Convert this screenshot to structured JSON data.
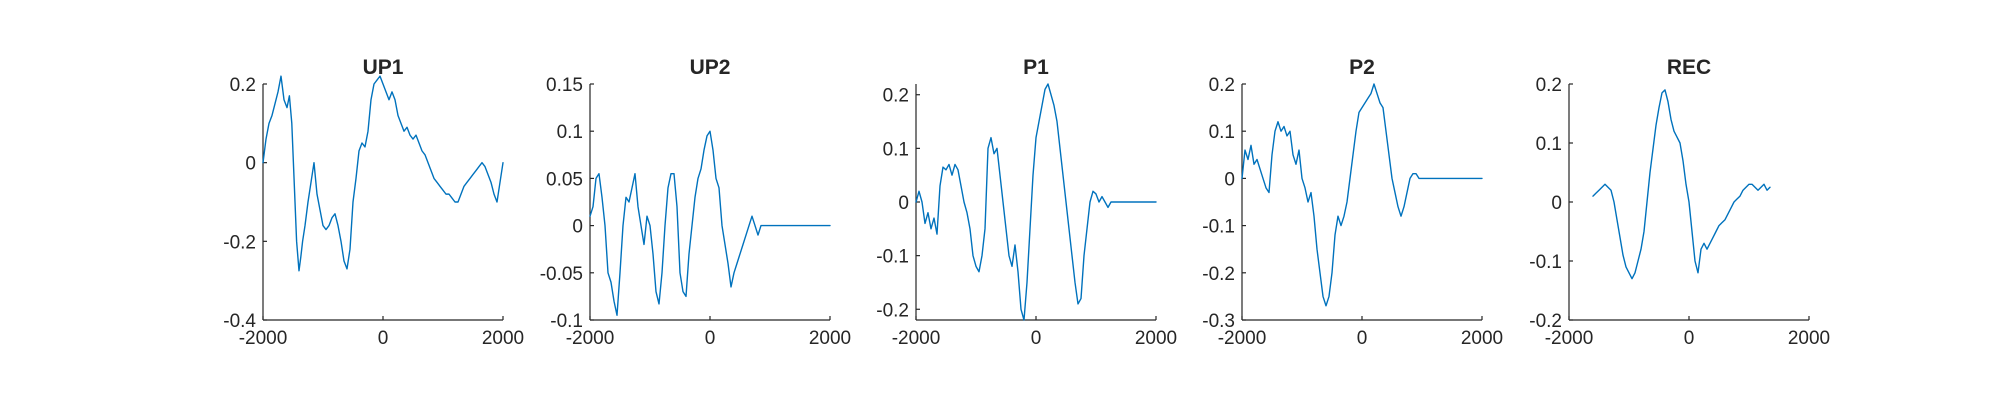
{
  "figure": {
    "line_color": "#0072BD",
    "axis_color": "#262626"
  },
  "chart_data": [
    {
      "type": "line",
      "title": "UP1",
      "xlim": [
        -2000,
        2000
      ],
      "ylim": [
        -0.4,
        0.2
      ],
      "xticks": [
        -2000,
        0,
        2000
      ],
      "yticks": [
        -0.4,
        -0.2,
        0,
        0.2
      ],
      "xtick_labels": [
        "-2000",
        "0",
        "2000"
      ],
      "ytick_labels": [
        "-0.4",
        "-0.2",
        "0",
        "0.2"
      ],
      "grid": false,
      "x": [
        -2000,
        -1950,
        -1900,
        -1850,
        -1800,
        -1750,
        -1700,
        -1650,
        -1600,
        -1560,
        -1520,
        -1480,
        -1440,
        -1400,
        -1370,
        -1340,
        -1300,
        -1250,
        -1200,
        -1150,
        -1100,
        -1050,
        -1000,
        -950,
        -900,
        -850,
        -800,
        -750,
        -700,
        -650,
        -600,
        -550,
        -500,
        -450,
        -400,
        -350,
        -300,
        -250,
        -200,
        -150,
        -100,
        -50,
        0,
        50,
        100,
        150,
        200,
        250,
        300,
        350,
        400,
        450,
        500,
        550,
        600,
        650,
        700,
        750,
        800,
        850,
        900,
        950,
        1000,
        1050,
        1100,
        1150,
        1200,
        1250,
        1300,
        1350,
        1400,
        1450,
        1500,
        1550,
        1600,
        1650,
        1700,
        1750,
        1800,
        1850,
        1900,
        1950,
        2000
      ],
      "series": [
        {
          "values": [
            0.0,
            0.06,
            0.1,
            0.12,
            0.15,
            0.18,
            0.22,
            0.16,
            0.14,
            0.17,
            0.1,
            -0.05,
            -0.2,
            -0.275,
            -0.24,
            -0.2,
            -0.16,
            -0.1,
            -0.05,
            0.0,
            -0.08,
            -0.12,
            -0.16,
            -0.17,
            -0.16,
            -0.14,
            -0.13,
            -0.16,
            -0.2,
            -0.25,
            -0.27,
            -0.22,
            -0.1,
            -0.04,
            0.03,
            0.05,
            0.04,
            0.08,
            0.16,
            0.2,
            0.21,
            0.22,
            0.2,
            0.18,
            0.16,
            0.18,
            0.16,
            0.12,
            0.1,
            0.08,
            0.09,
            0.07,
            0.06,
            0.07,
            0.05,
            0.03,
            0.02,
            0.0,
            -0.02,
            -0.04,
            -0.05,
            -0.06,
            -0.07,
            -0.08,
            -0.08,
            -0.09,
            -0.1,
            -0.1,
            -0.08,
            -0.06,
            -0.05,
            -0.04,
            -0.03,
            -0.02,
            -0.01,
            0.0,
            -0.01,
            -0.03,
            -0.05,
            -0.08,
            -0.1,
            -0.05,
            0.0
          ]
        }
      ]
    },
    {
      "type": "line",
      "title": "UP2",
      "xlim": [
        -2000,
        2000
      ],
      "ylim": [
        -0.1,
        0.15
      ],
      "xticks": [
        -2000,
        0,
        2000
      ],
      "yticks": [
        -0.1,
        -0.05,
        0,
        0.05,
        0.1,
        0.15
      ],
      "xtick_labels": [
        "-2000",
        "0",
        "2000"
      ],
      "ytick_labels": [
        "-0.1",
        "-0.05",
        "0",
        "0.05",
        "0.1",
        "0.15"
      ],
      "grid": false,
      "x": [
        -2000,
        -1950,
        -1900,
        -1850,
        -1800,
        -1750,
        -1700,
        -1650,
        -1600,
        -1550,
        -1500,
        -1450,
        -1400,
        -1350,
        -1300,
        -1250,
        -1200,
        -1150,
        -1100,
        -1050,
        -1000,
        -950,
        -900,
        -850,
        -800,
        -750,
        -700,
        -650,
        -600,
        -550,
        -500,
        -450,
        -400,
        -350,
        -300,
        -250,
        -200,
        -150,
        -100,
        -50,
        0,
        50,
        100,
        150,
        200,
        250,
        300,
        350,
        400,
        450,
        500,
        550,
        600,
        650,
        700,
        750,
        800,
        850,
        900,
        950,
        1000,
        1050,
        1100,
        1150,
        1200,
        1250,
        1300,
        1350,
        1400,
        1450,
        1500,
        1550,
        1600,
        1650,
        1700,
        1750,
        1800,
        1850,
        1900,
        1950,
        2000
      ],
      "series": [
        {
          "values": [
            0.01,
            0.02,
            0.05,
            0.055,
            0.03,
            0.0,
            -0.05,
            -0.06,
            -0.08,
            -0.095,
            -0.05,
            0.0,
            0.03,
            0.025,
            0.04,
            0.055,
            0.02,
            0.0,
            -0.02,
            0.01,
            0.0,
            -0.03,
            -0.07,
            -0.083,
            -0.05,
            0.0,
            0.04,
            0.055,
            0.055,
            0.02,
            -0.05,
            -0.07,
            -0.075,
            -0.03,
            0.0,
            0.03,
            0.05,
            0.06,
            0.08,
            0.095,
            0.1,
            0.08,
            0.05,
            0.04,
            0.0,
            -0.02,
            -0.04,
            -0.065,
            -0.05,
            -0.04,
            -0.03,
            -0.02,
            -0.01,
            0.0,
            0.01,
            0.0,
            -0.01,
            0.0,
            0.0,
            0.0,
            0.0,
            0.0,
            0.0,
            0.0,
            0.0,
            0.0,
            0.0,
            0.0,
            0.0,
            0.0,
            0.0,
            0.0,
            0.0,
            0.0,
            0.0,
            0.0,
            0.0,
            0.0,
            0.0,
            0.0,
            0.0
          ]
        }
      ]
    },
    {
      "type": "line",
      "title": "P1",
      "xlim": [
        -2000,
        2000
      ],
      "ylim": [
        -0.22,
        0.22
      ],
      "xticks": [
        -2000,
        0,
        2000
      ],
      "yticks": [
        -0.2,
        -0.1,
        0,
        0.1,
        0.2
      ],
      "xtick_labels": [
        "-2000",
        "0",
        "2000"
      ],
      "ytick_labels": [
        "-0.2",
        "-0.1",
        "0",
        "0.1",
        "0.2"
      ],
      "grid": false,
      "x": [
        -2000,
        -1950,
        -1900,
        -1850,
        -1800,
        -1750,
        -1700,
        -1650,
        -1600,
        -1550,
        -1500,
        -1450,
        -1400,
        -1350,
        -1300,
        -1250,
        -1200,
        -1150,
        -1100,
        -1050,
        -1000,
        -950,
        -900,
        -850,
        -800,
        -750,
        -700,
        -650,
        -600,
        -550,
        -500,
        -450,
        -400,
        -350,
        -300,
        -250,
        -200,
        -150,
        -100,
        -50,
        0,
        50,
        100,
        150,
        200,
        250,
        300,
        350,
        400,
        450,
        500,
        550,
        600,
        650,
        700,
        750,
        800,
        850,
        900,
        950,
        1000,
        1050,
        1100,
        1150,
        1200,
        1250,
        1300,
        1350,
        1400,
        1450,
        1500,
        1550,
        1600,
        1650,
        1700,
        1750,
        1800,
        1850,
        1900,
        1950,
        2000
      ],
      "series": [
        {
          "values": [
            0.0,
            0.02,
            0.0,
            -0.04,
            -0.02,
            -0.05,
            -0.03,
            -0.06,
            0.03,
            0.065,
            0.06,
            0.07,
            0.05,
            0.07,
            0.06,
            0.03,
            0.0,
            -0.02,
            -0.05,
            -0.1,
            -0.12,
            -0.13,
            -0.1,
            -0.05,
            0.1,
            0.12,
            0.09,
            0.1,
            0.05,
            0.0,
            -0.05,
            -0.1,
            -0.12,
            -0.08,
            -0.13,
            -0.2,
            -0.22,
            -0.15,
            -0.05,
            0.05,
            0.12,
            0.15,
            0.18,
            0.21,
            0.22,
            0.2,
            0.18,
            0.15,
            0.1,
            0.05,
            0.0,
            -0.05,
            -0.1,
            -0.15,
            -0.19,
            -0.18,
            -0.1,
            -0.05,
            0.0,
            0.02,
            0.015,
            0.0,
            0.01,
            0.0,
            -0.01,
            0.0,
            0.0,
            0.0,
            0.0,
            0.0,
            0.0,
            0.0,
            0.0,
            0.0,
            0.0,
            0.0,
            0.0,
            0.0,
            0.0,
            0.0,
            0.0
          ]
        }
      ]
    },
    {
      "type": "line",
      "title": "P2",
      "xlim": [
        -2000,
        2000
      ],
      "ylim": [
        -0.3,
        0.2
      ],
      "xticks": [
        -2000,
        0,
        2000
      ],
      "yticks": [
        -0.3,
        -0.2,
        -0.1,
        0,
        0.1,
        0.2
      ],
      "xtick_labels": [
        "-2000",
        "0",
        "2000"
      ],
      "ytick_labels": [
        "-0.3",
        "-0.2",
        "-0.1",
        "0",
        "0.1",
        "0.2"
      ],
      "grid": false,
      "x": [
        -2000,
        -1950,
        -1900,
        -1850,
        -1800,
        -1750,
        -1700,
        -1650,
        -1600,
        -1550,
        -1500,
        -1450,
        -1400,
        -1350,
        -1300,
        -1250,
        -1200,
        -1150,
        -1100,
        -1050,
        -1000,
        -950,
        -900,
        -850,
        -800,
        -750,
        -700,
        -650,
        -600,
        -550,
        -500,
        -450,
        -400,
        -350,
        -300,
        -250,
        -200,
        -150,
        -100,
        -50,
        0,
        50,
        100,
        150,
        200,
        250,
        300,
        350,
        400,
        450,
        500,
        550,
        600,
        650,
        700,
        750,
        800,
        850,
        900,
        950,
        1000,
        1050,
        1100,
        1150,
        1200,
        1250,
        1300,
        1350,
        1400,
        1450,
        1500,
        1550,
        1600,
        1650,
        1700,
        1750,
        1800,
        1850,
        1900,
        1950,
        2000
      ],
      "series": [
        {
          "values": [
            0.0,
            0.06,
            0.04,
            0.07,
            0.03,
            0.04,
            0.02,
            0.0,
            -0.02,
            -0.03,
            0.05,
            0.1,
            0.12,
            0.1,
            0.11,
            0.09,
            0.1,
            0.05,
            0.03,
            0.06,
            0.0,
            -0.02,
            -0.05,
            -0.03,
            -0.08,
            -0.15,
            -0.2,
            -0.25,
            -0.27,
            -0.25,
            -0.2,
            -0.12,
            -0.08,
            -0.1,
            -0.08,
            -0.05,
            0.0,
            0.05,
            0.1,
            0.14,
            0.15,
            0.16,
            0.17,
            0.18,
            0.2,
            0.18,
            0.16,
            0.15,
            0.1,
            0.05,
            0.0,
            -0.03,
            -0.06,
            -0.08,
            -0.06,
            -0.03,
            0.0,
            0.01,
            0.01,
            0.0,
            0.0,
            0.0,
            0.0,
            0.0,
            0.0,
            0.0,
            0.0,
            0.0,
            0.0,
            0.0,
            0.0,
            0.0,
            0.0,
            0.0,
            0.0,
            0.0,
            0.0,
            0.0,
            0.0,
            0.0,
            0.0
          ]
        }
      ]
    },
    {
      "type": "line",
      "title": "REC",
      "xlim": [
        -2000,
        2000
      ],
      "ylim": [
        -0.2,
        0.2
      ],
      "xticks": [
        -2000,
        0,
        2000
      ],
      "yticks": [
        -0.2,
        -0.1,
        0,
        0.1,
        0.2
      ],
      "xtick_labels": [
        "-2000",
        "0",
        "2000"
      ],
      "ytick_labels": [
        "-0.2",
        "-0.1",
        "0",
        "0.1",
        "0.2"
      ],
      "grid": false,
      "x": [
        -1600,
        -1550,
        -1500,
        -1450,
        -1400,
        -1350,
        -1300,
        -1250,
        -1200,
        -1150,
        -1100,
        -1050,
        -1000,
        -950,
        -900,
        -850,
        -800,
        -750,
        -700,
        -650,
        -600,
        -550,
        -500,
        -450,
        -400,
        -350,
        -300,
        -250,
        -200,
        -150,
        -100,
        -50,
        0,
        50,
        100,
        150,
        200,
        250,
        300,
        350,
        400,
        450,
        500,
        550,
        600,
        650,
        700,
        750,
        800,
        850,
        900,
        950,
        1000,
        1050,
        1100,
        1150,
        1200,
        1250,
        1300,
        1350
      ],
      "series": [
        {
          "values": [
            0.01,
            0.015,
            0.02,
            0.025,
            0.03,
            0.025,
            0.02,
            0.0,
            -0.03,
            -0.06,
            -0.09,
            -0.11,
            -0.12,
            -0.13,
            -0.12,
            -0.1,
            -0.08,
            -0.05,
            0.0,
            0.05,
            0.09,
            0.13,
            0.16,
            0.185,
            0.19,
            0.17,
            0.14,
            0.12,
            0.11,
            0.1,
            0.07,
            0.03,
            0.0,
            -0.05,
            -0.1,
            -0.12,
            -0.08,
            -0.07,
            -0.08,
            -0.07,
            -0.06,
            -0.05,
            -0.04,
            -0.035,
            -0.03,
            -0.02,
            -0.01,
            0.0,
            0.005,
            0.01,
            0.02,
            0.025,
            0.03,
            0.03,
            0.025,
            0.02,
            0.025,
            0.03,
            0.02,
            0.025
          ]
        }
      ]
    }
  ]
}
